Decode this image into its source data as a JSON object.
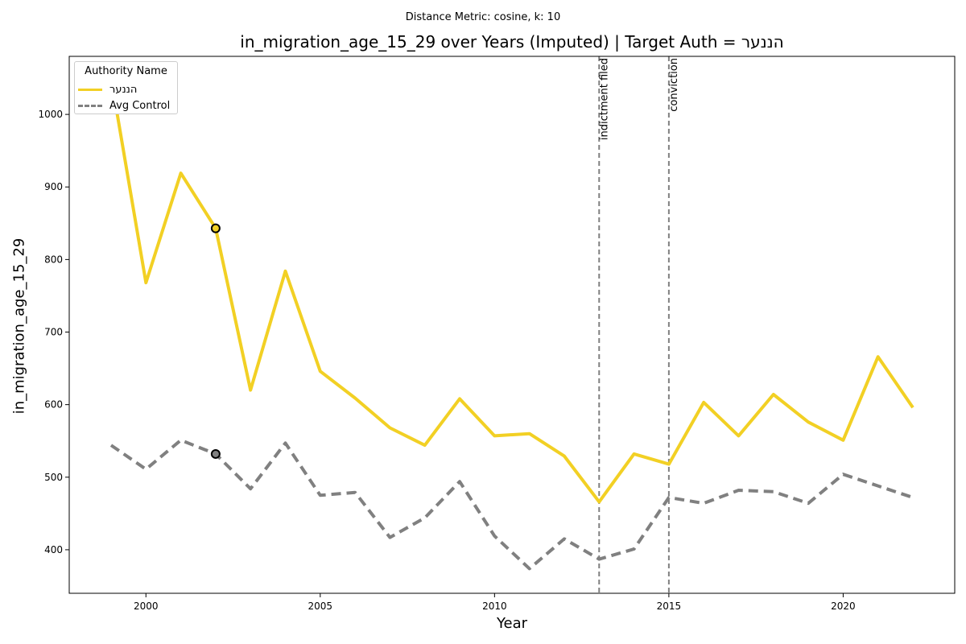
{
  "chart_data": {
    "type": "line",
    "suptitle": "Distance Metric: cosine, k: 10",
    "title": "in_migration_age_15_29 over Years (Imputed) | Target Auth = הננער",
    "xlabel": "Year",
    "ylabel": "in_migration_age_15_29",
    "xlim": [
      1997.8,
      2023.2
    ],
    "ylim": [
      340,
      1080
    ],
    "xticks": [
      2000,
      2005,
      2010,
      2015,
      2020
    ],
    "yticks": [
      400,
      500,
      600,
      700,
      800,
      900,
      1000
    ],
    "grid": false,
    "x": [
      1999,
      2000,
      2001,
      2002,
      2003,
      2004,
      2005,
      2006,
      2007,
      2008,
      2009,
      2010,
      2011,
      2012,
      2013,
      2014,
      2015,
      2016,
      2017,
      2018,
      2019,
      2020,
      2021,
      2022
    ],
    "series": [
      {
        "name": "הננער",
        "color": "#f2d024",
        "style": "solid",
        "values": [
          1050,
          768,
          919,
          843,
          620,
          784,
          646,
          609,
          568,
          544,
          608,
          557,
          560,
          529,
          466,
          532,
          518,
          603,
          557,
          614,
          576,
          551,
          666,
          596
        ]
      },
      {
        "name": "Avg Control",
        "color": "#808080",
        "style": "dashed",
        "values": [
          544,
          511,
          551,
          532,
          484,
          547,
          475,
          479,
          417,
          444,
          494,
          419,
          374,
          415,
          387,
          401,
          472,
          464,
          482,
          480,
          464,
          504,
          488,
          472
        ]
      }
    ],
    "markers": [
      {
        "series": 0,
        "x": 2002,
        "y": 843
      },
      {
        "series": 1,
        "x": 2002,
        "y": 532
      }
    ],
    "events": [
      {
        "x": 2013,
        "label": "indictment filed"
      },
      {
        "x": 2015,
        "label": "conviction"
      }
    ],
    "legend": {
      "title": "Authority Name",
      "position": "top-left"
    }
  }
}
